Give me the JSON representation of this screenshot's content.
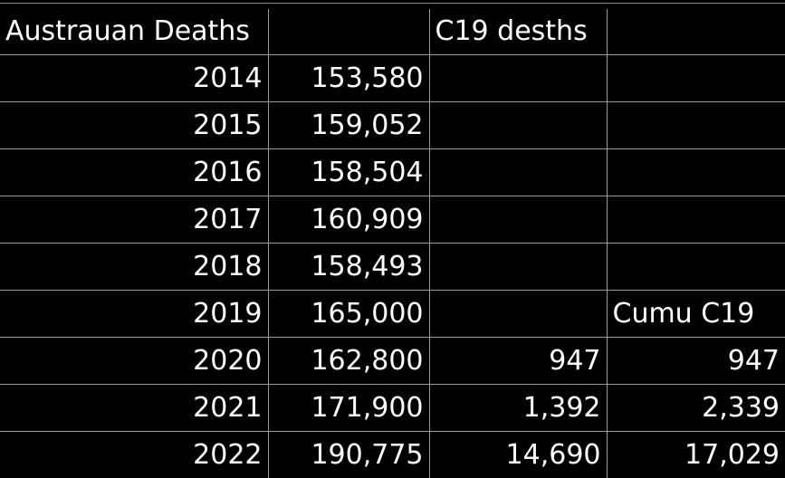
{
  "header": {
    "col_a": "Austrauan Deaths",
    "col_b": "",
    "col_c": "C19 desths",
    "col_d": ""
  },
  "rows": [
    {
      "year": "2014",
      "deaths": "153,580",
      "c19": "",
      "cumu": ""
    },
    {
      "year": "2015",
      "deaths": "159,052",
      "c19": "",
      "cumu": ""
    },
    {
      "year": "2016",
      "deaths": "158,504",
      "c19": "",
      "cumu": ""
    },
    {
      "year": "2017",
      "deaths": "160,909",
      "c19": "",
      "cumu": ""
    },
    {
      "year": "2018",
      "deaths": "158,493",
      "c19": "",
      "cumu": ""
    },
    {
      "year": "2019",
      "deaths": "165,000",
      "c19": "",
      "cumu": "Cumu C19"
    },
    {
      "year": "2020",
      "deaths": "162,800",
      "c19": "947",
      "cumu": "947"
    },
    {
      "year": "2021",
      "deaths": "171,900",
      "c19": "1,392",
      "cumu": "2,339"
    },
    {
      "year": "2022",
      "deaths": "190,775",
      "c19": "14,690",
      "cumu": "17,029"
    }
  ],
  "colors": {
    "background": "#000000",
    "text": "#ffffff",
    "gridline": "#9a9a9a"
  }
}
